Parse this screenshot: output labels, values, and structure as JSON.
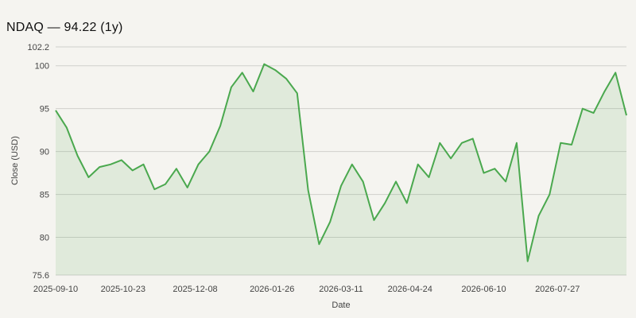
{
  "chart_data": {
    "type": "area",
    "title": "NDAQ — 94.22 (1y)",
    "xlabel": "Date",
    "ylabel": "Close (USD)",
    "ylim": [
      75.6,
      102.2
    ],
    "y_ticks": [
      75.6,
      80,
      85,
      90,
      95,
      100,
      102.2
    ],
    "x_ticks": [
      "2025-09-10",
      "2025-10-23",
      "2025-12-08",
      "2026-01-26",
      "2026-03-11",
      "2026-04-24",
      "2026-06-10",
      "2026-07-27"
    ],
    "grid": "horizontal",
    "legend": "none",
    "colors": {
      "line": "#4aa84e",
      "fill": "#4aa84e",
      "grid": "#d0d0cc",
      "background": "#f5f4f0"
    },
    "series": [
      {
        "x": [
          "2025-09-10",
          "2025-09-17",
          "2025-09-24",
          "2025-10-01",
          "2025-10-08",
          "2025-10-15",
          "2025-10-22",
          "2025-10-29",
          "2025-11-05",
          "2025-11-12",
          "2025-11-19",
          "2025-11-26",
          "2025-12-03",
          "2025-12-10",
          "2025-12-17",
          "2025-12-24",
          "2025-12-31",
          "2026-01-07",
          "2026-01-14",
          "2026-01-21",
          "2026-01-28",
          "2026-02-04",
          "2026-02-11",
          "2026-02-18",
          "2026-02-25",
          "2026-03-04",
          "2026-03-11",
          "2026-03-18",
          "2026-03-25",
          "2026-04-01",
          "2026-04-08",
          "2026-04-15",
          "2026-04-22",
          "2026-04-29",
          "2026-05-06",
          "2026-05-13",
          "2026-05-20",
          "2026-05-27",
          "2026-06-03",
          "2026-06-10",
          "2026-06-17",
          "2026-06-24",
          "2026-07-01",
          "2026-07-08",
          "2026-07-15",
          "2026-07-22",
          "2026-07-29",
          "2026-08-05",
          "2026-08-12",
          "2026-08-19",
          "2026-08-26",
          "2026-09-02",
          "2026-09-09"
        ],
        "values": [
          94.8,
          92.8,
          89.5,
          87.0,
          88.2,
          88.5,
          89.0,
          87.8,
          88.5,
          85.6,
          86.2,
          88.0,
          85.8,
          88.5,
          90.0,
          93.0,
          97.5,
          99.2,
          97.0,
          100.2,
          99.5,
          98.5,
          96.8,
          85.5,
          79.2,
          81.8,
          86.0,
          88.5,
          86.5,
          82.0,
          84.0,
          86.5,
          84.0,
          88.5,
          87.0,
          91.0,
          89.2,
          91.0,
          91.5,
          87.5,
          88.0,
          86.5,
          91.0,
          77.2,
          82.5,
          85.0,
          91.0,
          90.8,
          95.0,
          94.5,
          97.0,
          99.2,
          94.22
        ]
      }
    ]
  }
}
